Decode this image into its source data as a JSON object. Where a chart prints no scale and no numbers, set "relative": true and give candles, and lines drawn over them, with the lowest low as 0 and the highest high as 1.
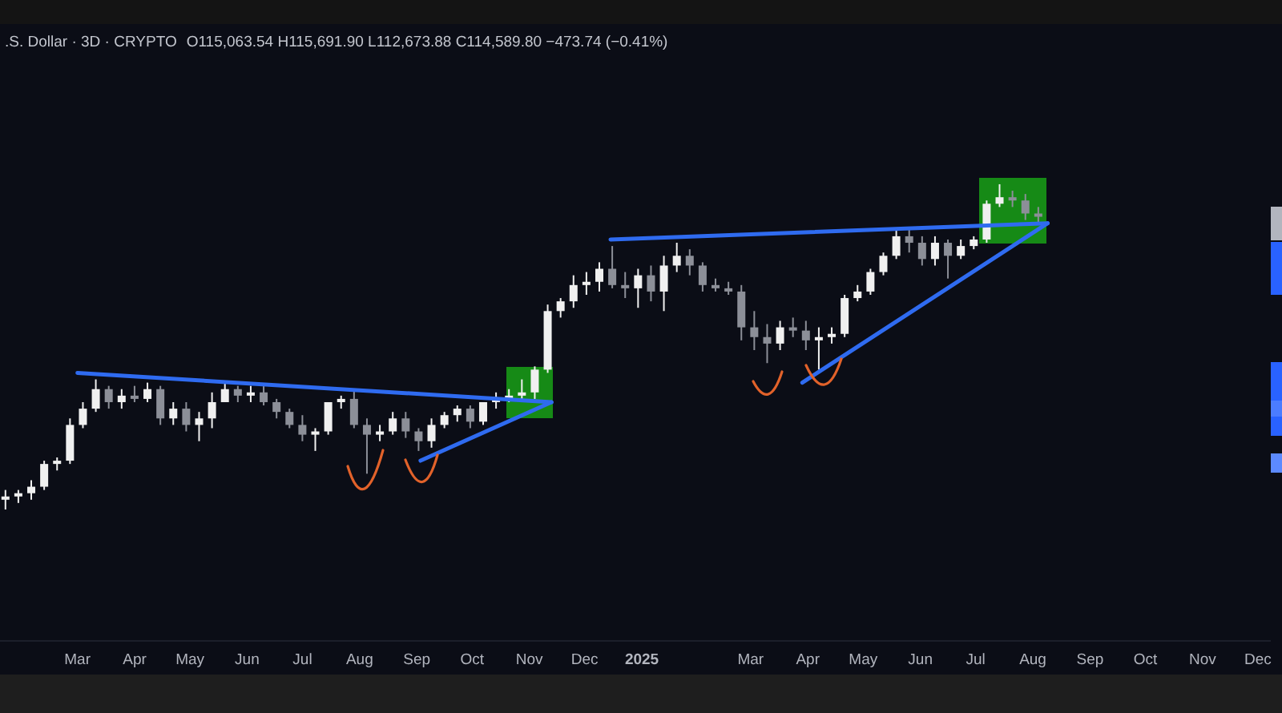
{
  "chart_data": {
    "type": "candlestick",
    "title": ".S. Dollar · 3D · CRYPTO",
    "subtitle": "O115,063.54 H115,691.90 L112,673.88 C114,589.80 −473.74 (−0.41%)",
    "relative": true,
    "xlim": [
      "2024-01-19",
      "2025-12-08"
    ],
    "xticks": [
      {
        "value": "2024-03-01",
        "label": "Mar"
      },
      {
        "value": "2024-04-01",
        "label": "Apr"
      },
      {
        "value": "2024-05-01",
        "label": "May"
      },
      {
        "value": "2024-06-01",
        "label": "Jun"
      },
      {
        "value": "2024-07-01",
        "label": "Jul"
      },
      {
        "value": "2024-08-01",
        "label": "Aug"
      },
      {
        "value": "2024-09-01",
        "label": "Sep"
      },
      {
        "value": "2024-10-01",
        "label": "Oct"
      },
      {
        "value": "2024-11-01",
        "label": "Nov"
      },
      {
        "value": "2024-12-01",
        "label": "Dec"
      },
      {
        "value": "2025-01-01",
        "label": "2025"
      },
      {
        "value": "2025-03-01",
        "label": "Mar"
      },
      {
        "value": "2025-04-01",
        "label": "Apr"
      },
      {
        "value": "2025-05-01",
        "label": "May"
      },
      {
        "value": "2025-06-01",
        "label": "Jun"
      },
      {
        "value": "2025-07-01",
        "label": "Jul"
      },
      {
        "value": "2025-08-01",
        "label": "Aug"
      },
      {
        "value": "2025-09-01",
        "label": "Sep"
      },
      {
        "value": "2025-10-01",
        "label": "Oct"
      },
      {
        "value": "2025-11-01",
        "label": "Nov"
      },
      {
        "value": "2025-12-01",
        "label": "Dec"
      }
    ],
    "x": [
      "2024-01-22",
      "2024-01-29",
      "2024-02-05",
      "2024-02-12",
      "2024-02-19",
      "2024-02-26",
      "2024-03-04",
      "2024-03-11",
      "2024-03-18",
      "2024-03-25",
      "2024-04-01",
      "2024-04-08",
      "2024-04-15",
      "2024-04-22",
      "2024-04-29",
      "2024-05-06",
      "2024-05-13",
      "2024-05-20",
      "2024-05-27",
      "2024-06-03",
      "2024-06-10",
      "2024-06-17",
      "2024-06-24",
      "2024-07-01",
      "2024-07-08",
      "2024-07-15",
      "2024-07-22",
      "2024-07-29",
      "2024-08-05",
      "2024-08-12",
      "2024-08-19",
      "2024-08-26",
      "2024-09-02",
      "2024-09-09",
      "2024-09-16",
      "2024-09-23",
      "2024-09-30",
      "2024-10-07",
      "2024-10-14",
      "2024-10-21",
      "2024-10-28",
      "2024-11-04",
      "2024-11-11",
      "2024-11-18",
      "2024-11-25",
      "2024-12-02",
      "2024-12-09",
      "2024-12-16",
      "2024-12-23",
      "2024-12-30",
      "2025-01-06",
      "2025-01-13",
      "2025-01-20",
      "2025-01-27",
      "2025-02-03",
      "2025-02-10",
      "2025-02-17",
      "2025-02-24",
      "2025-03-03",
      "2025-03-10",
      "2025-03-17",
      "2025-03-24",
      "2025-03-31",
      "2025-04-07",
      "2025-04-14",
      "2025-04-21",
      "2025-04-28",
      "2025-05-05",
      "2025-05-12",
      "2025-05-19",
      "2025-05-26",
      "2025-06-02",
      "2025-06-09",
      "2025-06-16",
      "2025-06-23",
      "2025-06-30",
      "2025-07-07",
      "2025-07-14",
      "2025-07-21",
      "2025-07-28",
      "2025-08-04"
    ],
    "ohlc": [
      [
        0.03,
        0.06,
        0,
        0.04
      ],
      [
        0.04,
        0.06,
        0.02,
        0.05
      ],
      [
        0.05,
        0.09,
        0.03,
        0.07
      ],
      [
        0.07,
        0.15,
        0.06,
        0.14
      ],
      [
        0.14,
        0.16,
        0.12,
        0.15
      ],
      [
        0.15,
        0.28,
        0.14,
        0.26
      ],
      [
        0.26,
        0.33,
        0.25,
        0.31
      ],
      [
        0.31,
        0.4,
        0.3,
        0.37
      ],
      [
        0.37,
        0.38,
        0.31,
        0.33
      ],
      [
        0.33,
        0.37,
        0.31,
        0.35
      ],
      [
        0.35,
        0.38,
        0.33,
        0.34
      ],
      [
        0.34,
        0.39,
        0.33,
        0.37
      ],
      [
        0.37,
        0.38,
        0.26,
        0.28
      ],
      [
        0.28,
        0.33,
        0.26,
        0.31
      ],
      [
        0.31,
        0.33,
        0.24,
        0.26
      ],
      [
        0.26,
        0.3,
        0.21,
        0.28
      ],
      [
        0.28,
        0.36,
        0.25,
        0.33
      ],
      [
        0.33,
        0.39,
        0.33,
        0.37
      ],
      [
        0.37,
        0.38,
        0.33,
        0.35
      ],
      [
        0.35,
        0.38,
        0.33,
        0.36
      ],
      [
        0.36,
        0.38,
        0.32,
        0.33
      ],
      [
        0.33,
        0.34,
        0.28,
        0.3
      ],
      [
        0.3,
        0.31,
        0.25,
        0.26
      ],
      [
        0.26,
        0.29,
        0.21,
        0.23
      ],
      [
        0.23,
        0.25,
        0.18,
        0.24
      ],
      [
        0.24,
        0.33,
        0.23,
        0.33
      ],
      [
        0.33,
        0.35,
        0.31,
        0.34
      ],
      [
        0.34,
        0.37,
        0.25,
        0.26
      ],
      [
        0.26,
        0.28,
        0.11,
        0.23
      ],
      [
        0.23,
        0.26,
        0.21,
        0.24
      ],
      [
        0.24,
        0.3,
        0.23,
        0.28
      ],
      [
        0.28,
        0.3,
        0.22,
        0.24
      ],
      [
        0.24,
        0.25,
        0.18,
        0.21
      ],
      [
        0.21,
        0.28,
        0.19,
        0.26
      ],
      [
        0.26,
        0.3,
        0.25,
        0.29
      ],
      [
        0.29,
        0.32,
        0.27,
        0.31
      ],
      [
        0.31,
        0.32,
        0.25,
        0.27
      ],
      [
        0.27,
        0.33,
        0.26,
        0.33
      ],
      [
        0.33,
        0.36,
        0.31,
        0.34
      ],
      [
        0.34,
        0.37,
        0.33,
        0.35
      ],
      [
        0.35,
        0.4,
        0.33,
        0.36
      ],
      [
        0.36,
        0.44,
        0.34,
        0.43
      ],
      [
        0.43,
        0.63,
        0.42,
        0.61
      ],
      [
        0.61,
        0.65,
        0.59,
        0.64
      ],
      [
        0.64,
        0.72,
        0.62,
        0.69
      ],
      [
        0.69,
        0.73,
        0.66,
        0.7
      ],
      [
        0.7,
        0.76,
        0.67,
        0.74
      ],
      [
        0.74,
        0.81,
        0.68,
        0.69
      ],
      [
        0.69,
        0.73,
        0.65,
        0.68
      ],
      [
        0.68,
        0.74,
        0.62,
        0.72
      ],
      [
        0.72,
        0.75,
        0.64,
        0.67
      ],
      [
        0.67,
        0.78,
        0.61,
        0.75
      ],
      [
        0.75,
        0.82,
        0.73,
        0.78
      ],
      [
        0.78,
        0.8,
        0.72,
        0.75
      ],
      [
        0.75,
        0.76,
        0.67,
        0.69
      ],
      [
        0.69,
        0.71,
        0.67,
        0.68
      ],
      [
        0.68,
        0.7,
        0.66,
        0.67
      ],
      [
        0.67,
        0.69,
        0.52,
        0.56
      ],
      [
        0.56,
        0.61,
        0.49,
        0.53
      ],
      [
        0.53,
        0.57,
        0.45,
        0.51
      ],
      [
        0.51,
        0.58,
        0.49,
        0.56
      ],
      [
        0.56,
        0.59,
        0.53,
        0.55
      ],
      [
        0.55,
        0.58,
        0.49,
        0.52
      ],
      [
        0.52,
        0.56,
        0.43,
        0.53
      ],
      [
        0.53,
        0.56,
        0.51,
        0.54
      ],
      [
        0.54,
        0.66,
        0.53,
        0.65
      ],
      [
        0.65,
        0.69,
        0.64,
        0.67
      ],
      [
        0.67,
        0.74,
        0.66,
        0.73
      ],
      [
        0.73,
        0.79,
        0.72,
        0.78
      ],
      [
        0.78,
        0.86,
        0.77,
        0.84
      ],
      [
        0.84,
        0.86,
        0.79,
        0.82
      ],
      [
        0.82,
        0.84,
        0.75,
        0.77
      ],
      [
        0.77,
        0.84,
        0.75,
        0.82
      ],
      [
        0.82,
        0.83,
        0.71,
        0.78
      ],
      [
        0.78,
        0.83,
        0.77,
        0.81
      ],
      [
        0.81,
        0.84,
        0.8,
        0.83
      ],
      [
        0.83,
        0.95,
        0.82,
        0.94
      ],
      [
        0.94,
        1,
        0.93,
        0.96
      ],
      [
        0.96,
        0.98,
        0.93,
        0.95
      ],
      [
        0.95,
        0.97,
        0.89,
        0.91
      ],
      [
        0.91,
        0.93,
        0.88,
        0.9
      ]
    ],
    "colors": [
      "#f0f0f0",
      "#f0f0f0",
      "#f0f0f0",
      "#f0f0f0",
      "#f0f0f0",
      "#f0f0f0",
      "#f0f0f0",
      "#f0f0f0",
      "#8c8f98",
      "#f0f0f0",
      "#8c8f98",
      "#f0f0f0",
      "#8c8f98",
      "#f0f0f0",
      "#8c8f98",
      "#f0f0f0",
      "#f0f0f0",
      "#f0f0f0",
      "#8c8f98",
      "#f0f0f0",
      "#8c8f98",
      "#8c8f98",
      "#8c8f98",
      "#8c8f98",
      "#f0f0f0",
      "#f0f0f0",
      "#f0f0f0",
      "#8c8f98",
      "#8c8f98",
      "#f0f0f0",
      "#f0f0f0",
      "#8c8f98",
      "#8c8f98",
      "#f0f0f0",
      "#f0f0f0",
      "#f0f0f0",
      "#8c8f98",
      "#f0f0f0",
      "#f0f0f0",
      "#f0f0f0",
      "#f0f0f0",
      "#f0f0f0",
      "#f0f0f0",
      "#f0f0f0",
      "#f0f0f0",
      "#f0f0f0",
      "#f0f0f0",
      "#8c8f98",
      "#8c8f98",
      "#f0f0f0",
      "#8c8f98",
      "#f0f0f0",
      "#f0f0f0",
      "#8c8f98",
      "#8c8f98",
      "#8c8f98",
      "#8c8f98",
      "#8c8f98",
      "#8c8f98",
      "#8c8f98",
      "#f0f0f0",
      "#8c8f98",
      "#8c8f98",
      "#f0f0f0",
      "#f0f0f0",
      "#f0f0f0",
      "#f0f0f0",
      "#f0f0f0",
      "#f0f0f0",
      "#f0f0f0",
      "#8c8f98",
      "#8c8f98",
      "#f0f0f0",
      "#8c8f98",
      "#f0f0f0",
      "#f0f0f0",
      "#f0f0f0",
      "#f0f0f0",
      "#8c8f98",
      "#8c8f98",
      "#8c8f98"
    ],
    "series": [
      {
        "type": "line",
        "color": "#2f6bf0",
        "x": [
          "2024-03-01",
          "2024-11-13"
        ],
        "values": [
          0.42,
          0.33
        ]
      },
      {
        "type": "line",
        "color": "#2f6bf0",
        "x": [
          "2024-09-03",
          "2024-11-13"
        ],
        "values": [
          0.15,
          0.33
        ]
      },
      {
        "type": "line",
        "color": "#2f6bf0",
        "x": [
          "2024-12-15",
          "2025-08-09"
        ],
        "values": [
          0.83,
          0.88
        ]
      },
      {
        "type": "line",
        "color": "#2f6bf0",
        "x": [
          "2025-03-29",
          "2025-08-09"
        ],
        "values": [
          0.39,
          0.88
        ]
      }
    ]
  }
}
